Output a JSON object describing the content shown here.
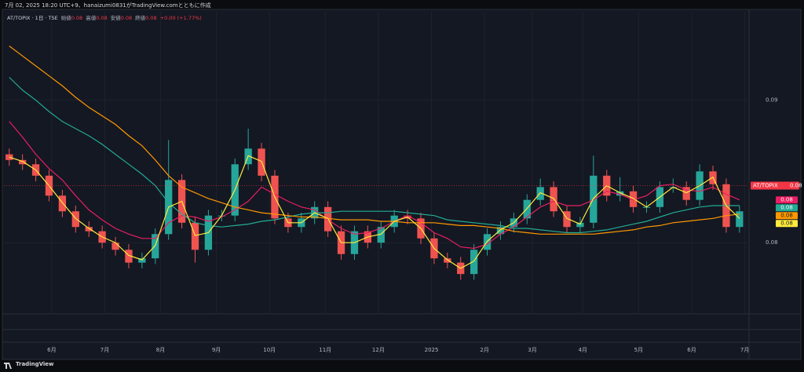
{
  "header": "7月 02, 2025 18:20 UTC+9、hanaizumi0831がTradingView.comとともに作成",
  "legend": {
    "symbol": "AT/TOPIX · 1日 · TSE",
    "items": [
      {
        "label": "始値",
        "value": 0.08
      },
      {
        "label": "高値",
        "value": 0.08
      },
      {
        "label": "安値",
        "value": 0.08
      },
      {
        "label": "終値",
        "value": 0.08
      }
    ],
    "change": "+0.00 (+1.77%)"
  },
  "footer": "TradingView",
  "chart_data": {
    "type": "candlestick",
    "x": [
      2,
      7,
      12,
      17,
      22,
      27,
      32,
      37,
      42,
      47,
      52,
      57,
      62,
      67,
      72,
      77,
      82,
      87,
      92,
      97,
      102,
      107,
      112,
      117,
      122,
      127,
      132,
      137,
      142,
      147,
      152,
      157,
      162,
      167,
      172,
      177,
      182,
      187,
      192,
      197,
      202,
      207,
      212,
      217,
      222,
      227,
      232,
      237,
      242,
      247,
      252,
      257,
      262,
      267,
      272,
      277
    ],
    "open": [
      0.0862,
      0.0858,
      0.0855,
      0.0847,
      0.0833,
      0.0822,
      0.0811,
      0.0808,
      0.08,
      0.0795,
      0.0786,
      0.0789,
      0.0806,
      0.0844,
      0.0814,
      0.0795,
      0.0819,
      0.0819,
      0.0855,
      0.0866,
      0.0847,
      0.0817,
      0.0811,
      0.0817,
      0.0825,
      0.0808,
      0.0792,
      0.0808,
      0.08,
      0.0811,
      0.0819,
      0.0817,
      0.0803,
      0.0789,
      0.0786,
      0.0778,
      0.0795,
      0.0806,
      0.0811,
      0.0817,
      0.083,
      0.0839,
      0.0822,
      0.0811,
      0.0814,
      0.0847,
      0.0833,
      0.0836,
      0.0825,
      0.0825,
      0.0839,
      0.0839,
      0.083,
      0.085,
      0.0841,
      0.0811
    ],
    "high": [
      0.0866,
      0.0862,
      0.0859,
      0.0851,
      0.0837,
      0.0826,
      0.0815,
      0.0812,
      0.0804,
      0.0799,
      0.0793,
      0.081,
      0.0872,
      0.0848,
      0.0818,
      0.0823,
      0.0823,
      0.0859,
      0.088,
      0.087,
      0.0851,
      0.0821,
      0.0821,
      0.0829,
      0.0829,
      0.0812,
      0.0812,
      0.0812,
      0.0815,
      0.0823,
      0.0823,
      0.0821,
      0.0807,
      0.0793,
      0.079,
      0.0799,
      0.081,
      0.0815,
      0.0821,
      0.0834,
      0.0845,
      0.0843,
      0.0826,
      0.0818,
      0.0861,
      0.0851,
      0.0846,
      0.084,
      0.0829,
      0.0843,
      0.0845,
      0.0843,
      0.0855,
      0.0854,
      0.0845,
      0.0826
    ],
    "low": [
      0.0854,
      0.0851,
      0.0843,
      0.0829,
      0.0818,
      0.0807,
      0.0804,
      0.0796,
      0.0791,
      0.0782,
      0.0782,
      0.0785,
      0.0802,
      0.081,
      0.0786,
      0.0791,
      0.0815,
      0.0815,
      0.0851,
      0.0843,
      0.0813,
      0.0807,
      0.0807,
      0.0813,
      0.0804,
      0.0788,
      0.0788,
      0.0796,
      0.0796,
      0.0807,
      0.0813,
      0.0799,
      0.0785,
      0.0782,
      0.0774,
      0.0774,
      0.0791,
      0.0802,
      0.0807,
      0.0813,
      0.0826,
      0.0818,
      0.0807,
      0.0807,
      0.081,
      0.0829,
      0.0829,
      0.0821,
      0.0821,
      0.0821,
      0.0835,
      0.0826,
      0.0826,
      0.0837,
      0.0807,
      0.0807
    ],
    "close": [
      0.0858,
      0.0855,
      0.0847,
      0.0833,
      0.0822,
      0.0811,
      0.0808,
      0.08,
      0.0795,
      0.0786,
      0.0789,
      0.0806,
      0.0844,
      0.0814,
      0.0795,
      0.0819,
      0.0819,
      0.0855,
      0.0866,
      0.0847,
      0.0817,
      0.0811,
      0.0817,
      0.0825,
      0.0808,
      0.0792,
      0.0808,
      0.08,
      0.0811,
      0.0819,
      0.0817,
      0.0803,
      0.0789,
      0.0786,
      0.0778,
      0.0795,
      0.0806,
      0.0811,
      0.0817,
      0.083,
      0.0839,
      0.0822,
      0.0811,
      0.0814,
      0.0847,
      0.0833,
      0.0836,
      0.0825,
      0.0825,
      0.0839,
      0.0839,
      0.083,
      0.085,
      0.0841,
      0.0811,
      0.0822
    ],
    "up_color": "#26a69a",
    "down_color": "#ef5350",
    "series": [
      {
        "color": "#e91e63",
        "last_label": "0.08",
        "values": [
          0.0885,
          0.0874,
          0.0862,
          0.0852,
          0.0844,
          0.0833,
          0.0823,
          0.0816,
          0.081,
          0.0806,
          0.0803,
          0.0803,
          0.0814,
          0.0819,
          0.0818,
          0.0815,
          0.0818,
          0.0823,
          0.0829,
          0.0839,
          0.0834,
          0.0829,
          0.0825,
          0.0823,
          0.0816,
          0.081,
          0.0806,
          0.0807,
          0.081,
          0.0815,
          0.0819,
          0.0814,
          0.0807,
          0.0803,
          0.0797,
          0.0796,
          0.0799,
          0.0806,
          0.0811,
          0.0818,
          0.0825,
          0.0829,
          0.0826,
          0.0826,
          0.083,
          0.0836,
          0.0834,
          0.083,
          0.0833,
          0.084,
          0.0841,
          0.0837,
          0.0836,
          0.0839,
          0.0834,
          0.083
        ]
      },
      {
        "color": "#22ab94",
        "last_label": "0.08",
        "values": [
          0.0916,
          0.0907,
          0.09,
          0.0892,
          0.0885,
          0.088,
          0.0875,
          0.0869,
          0.0862,
          0.0855,
          0.0848,
          0.084,
          0.0828,
          0.082,
          0.0814,
          0.0812,
          0.0811,
          0.0812,
          0.0813,
          0.0815,
          0.0816,
          0.0818,
          0.082,
          0.0821,
          0.0821,
          0.0822,
          0.0822,
          0.0822,
          0.0822,
          0.0822,
          0.0821,
          0.082,
          0.0819,
          0.0816,
          0.0815,
          0.0814,
          0.0813,
          0.0812,
          0.081,
          0.081,
          0.0809,
          0.0808,
          0.0807,
          0.0807,
          0.0808,
          0.0809,
          0.0811,
          0.0813,
          0.0815,
          0.0818,
          0.0821,
          0.0823,
          0.0825,
          0.0826,
          0.0826,
          0.0826
        ]
      },
      {
        "color": "#ff9800",
        "last_label": "0.08",
        "values": [
          0.0938,
          0.0931,
          0.0924,
          0.0917,
          0.091,
          0.0902,
          0.0895,
          0.0889,
          0.0883,
          0.0875,
          0.0868,
          0.0858,
          0.0847,
          0.0839,
          0.0835,
          0.0831,
          0.0828,
          0.0825,
          0.0823,
          0.0821,
          0.082,
          0.0819,
          0.0818,
          0.0818,
          0.0817,
          0.0816,
          0.0816,
          0.0816,
          0.0815,
          0.0815,
          0.0814,
          0.0814,
          0.0814,
          0.0813,
          0.0812,
          0.0812,
          0.0811,
          0.081,
          0.0808,
          0.0807,
          0.0806,
          0.0806,
          0.0806,
          0.0806,
          0.0806,
          0.0807,
          0.0808,
          0.0809,
          0.0811,
          0.0812,
          0.0814,
          0.0815,
          0.0816,
          0.0817,
          0.0819,
          0.082
        ]
      },
      {
        "color": "#ffeb3b",
        "last_label": "0.08",
        "values": [
          0.086,
          0.0857,
          0.0851,
          0.084,
          0.0828,
          0.0817,
          0.081,
          0.0804,
          0.08,
          0.0791,
          0.0788,
          0.0798,
          0.0825,
          0.0829,
          0.0805,
          0.0807,
          0.0819,
          0.0837,
          0.0861,
          0.0857,
          0.0832,
          0.0814,
          0.0814,
          0.0821,
          0.0817,
          0.08,
          0.08,
          0.0804,
          0.0806,
          0.0815,
          0.0818,
          0.081,
          0.0796,
          0.0788,
          0.0782,
          0.0787,
          0.0801,
          0.0809,
          0.0814,
          0.0824,
          0.0835,
          0.0831,
          0.0817,
          0.0813,
          0.0831,
          0.084,
          0.0835,
          0.0831,
          0.0825,
          0.0832,
          0.0839,
          0.0835,
          0.084,
          0.0846,
          0.0826,
          0.0817
        ]
      }
    ],
    "last_price": {
      "name": "AT/TOPIX",
      "value": 0.084,
      "label": "0.08",
      "color": "#f23645"
    },
    "xlim": [
      0,
      280
    ],
    "xticks": [
      {
        "value": 18,
        "label": "6月"
      },
      {
        "value": 38,
        "label": "7月"
      },
      {
        "value": 59,
        "label": "8月"
      },
      {
        "value": 80,
        "label": "9月"
      },
      {
        "value": 100,
        "label": "10月"
      },
      {
        "value": 121,
        "label": "11月"
      },
      {
        "value": 141,
        "label": "12月"
      },
      {
        "value": 161,
        "label": "2025"
      },
      {
        "value": 181,
        "label": "2月"
      },
      {
        "value": 199,
        "label": "3月"
      },
      {
        "value": 218,
        "label": "4月"
      },
      {
        "value": 239,
        "label": "5月"
      },
      {
        "value": 259,
        "label": "6月"
      },
      {
        "value": 279,
        "label": "7月"
      }
    ],
    "ylim": [
      0.075,
      0.0962
    ],
    "yticks": [
      0.08,
      0.09
    ],
    "grid": true
  }
}
